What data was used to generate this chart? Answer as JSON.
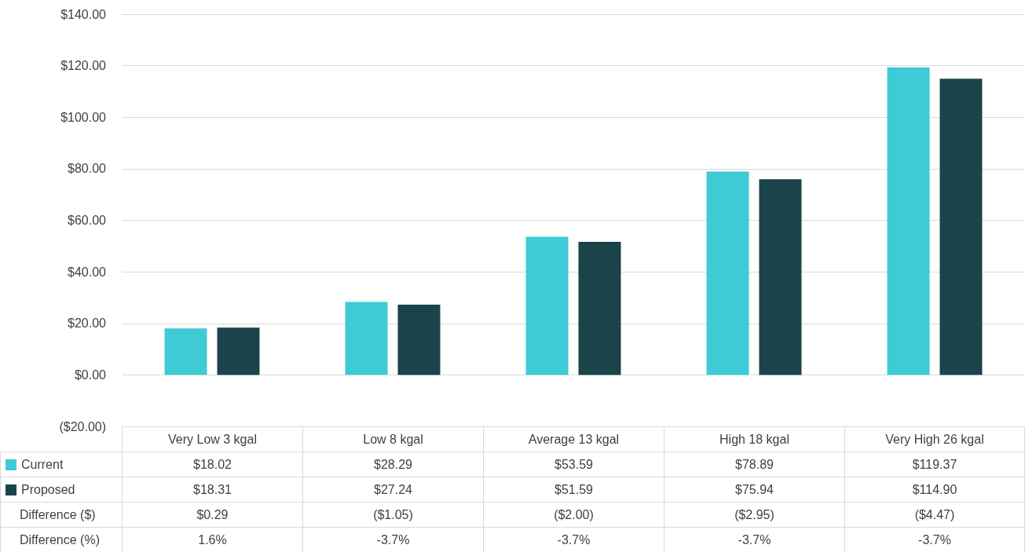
{
  "chart_data": {
    "type": "bar",
    "categories": [
      "Very Low 3 kgal",
      "Low 8 kgal",
      "Average 13 kgal",
      "High 18 kgal",
      "Very High 26 kgal"
    ],
    "series": [
      {
        "name": "Current",
        "color": "#3ecbd5",
        "values": [
          18.02,
          28.29,
          53.59,
          78.89,
          119.37
        ],
        "value_labels": [
          "$18.02",
          "$28.29",
          "$53.59",
          "$78.89",
          "$119.37"
        ]
      },
      {
        "name": "Proposed",
        "color": "#1a4449",
        "values": [
          18.31,
          27.24,
          51.59,
          75.94,
          114.9
        ],
        "value_labels": [
          "$18.31",
          "$27.24",
          "$51.59",
          "$75.94",
          "$114.90"
        ]
      }
    ],
    "annotations": [
      "Difference ($)",
      "$0.29",
      "($1.05)",
      "($2.00)",
      "($2.95)",
      "($4.47)",
      "Difference (%)",
      "1.6%",
      "-3.7%",
      "-3.7%",
      "-3.7%",
      "-3.7%"
    ],
    "ylim": [
      -20,
      140
    ],
    "yticks": [
      {
        "value": -20,
        "label": "($20.00)"
      },
      {
        "value": 0,
        "label": "$0.00"
      },
      {
        "value": 20,
        "label": "$20.00"
      },
      {
        "value": 40,
        "label": "$40.00"
      },
      {
        "value": 60,
        "label": "$60.00"
      },
      {
        "value": 80,
        "label": "$80.00"
      },
      {
        "value": 100,
        "label": "$100.00"
      },
      {
        "value": 120,
        "label": "$120.00"
      },
      {
        "value": 140,
        "label": "$140.00"
      }
    ],
    "grid": "y",
    "legend": "bottom left"
  }
}
